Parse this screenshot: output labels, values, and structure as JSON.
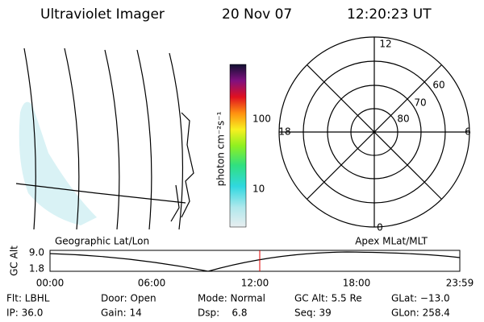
{
  "header": {
    "instrument": "Ultraviolet Imager",
    "date": "20 Nov 07",
    "time": "12:20:23 UT"
  },
  "colorbar": {
    "label": "photon cm⁻²s⁻¹",
    "ticks": [
      "100",
      "10"
    ]
  },
  "polar": {
    "top": "12",
    "bottom": "0",
    "left": "18",
    "right": "6",
    "rings": [
      "60",
      "70",
      "80"
    ]
  },
  "altitude_plot": {
    "left_title": "Geographic Lat/Lon",
    "right_title": "Apex MLat/MLT",
    "ylabel": "GC Alt",
    "yticks": [
      "9.0",
      "1.8"
    ],
    "xticks": [
      "00:00",
      "06:00",
      "12:00",
      "18:00",
      "23:59"
    ]
  },
  "info": [
    [
      "Flt: LBHL",
      "IP: 36.0"
    ],
    [
      "Door: Open",
      "Gain: 14"
    ],
    [
      "Mode: Normal",
      "Dsp:    6.8"
    ],
    [
      "GC Alt: 5.5 Re",
      "Seq: 39"
    ],
    [
      "GLat: −13.0",
      "GLon: 258.4"
    ]
  ]
}
